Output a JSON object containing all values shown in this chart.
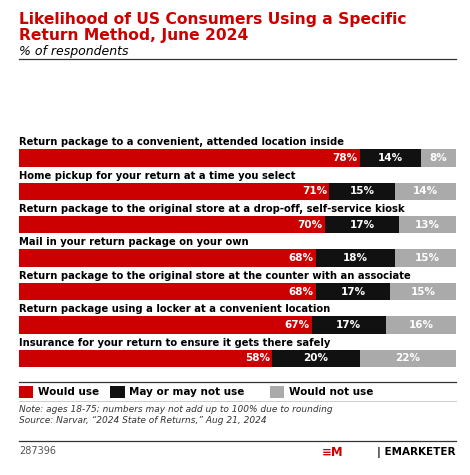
{
  "title_line1": "Likelihood of US Consumers Using a Specific",
  "title_line2": "Return Method, June 2024",
  "subtitle": "% of respondents",
  "categories": [
    "Return package to a convenient, attended location inside",
    "Home pickup for your return at a time you select",
    "Return package to the original store at a drop-off, self-service kiosk",
    "Mail in your return package on your own",
    "Return package to the original store at the counter with an associate",
    "Return package using a locker at a convenient location",
    "Insurance for your return to ensure it gets there safely"
  ],
  "would_use": [
    78,
    71,
    70,
    68,
    68,
    67,
    58
  ],
  "may_or_not": [
    14,
    15,
    17,
    18,
    17,
    17,
    20
  ],
  "would_not_use": [
    8,
    14,
    13,
    15,
    15,
    16,
    22
  ],
  "color_would": "#cc0000",
  "color_may": "#111111",
  "color_would_not": "#aaaaaa",
  "note_line1": "Note: ages 18-75; numbers may not add up to 100% due to rounding",
  "note_line2": "Source: Narvar, “2024 State of Returns,” Aug 21, 2024",
  "footer_id": "287396",
  "title_color": "#cc0000",
  "bar_height": 0.52
}
